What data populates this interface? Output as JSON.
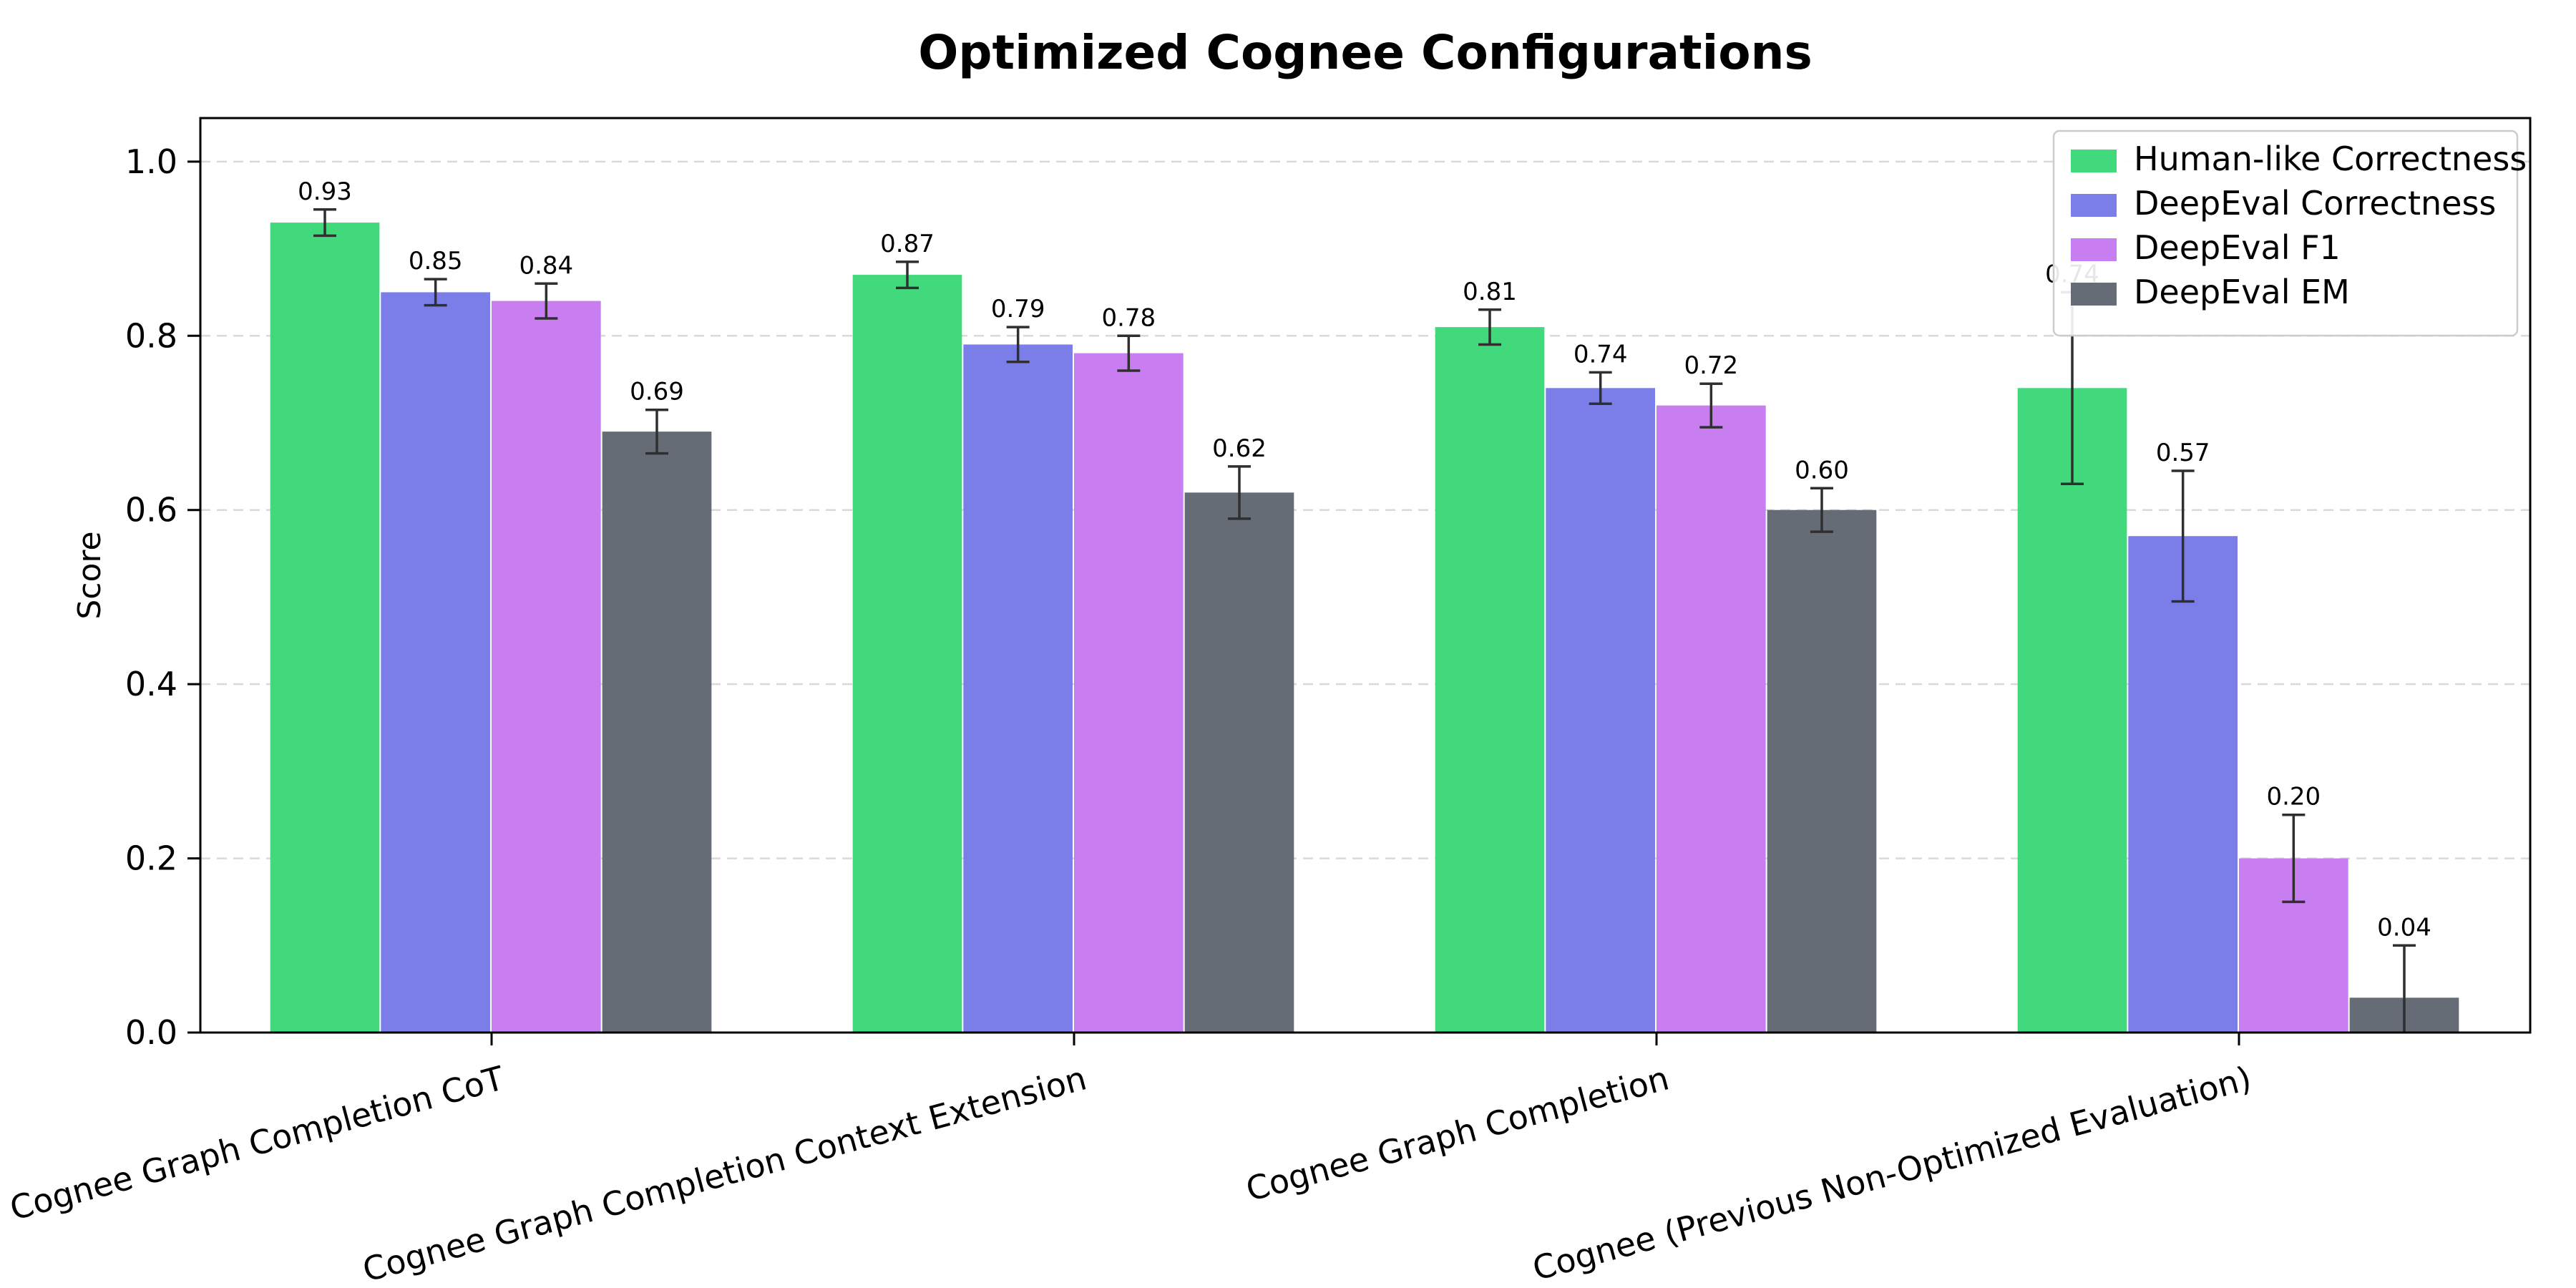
{
  "chart_data": {
    "type": "bar",
    "title": "Optimized Cognee Configurations",
    "xlabel": "",
    "ylabel": "Score",
    "ylim": [
      0.0,
      1.05
    ],
    "yticks": [
      0.0,
      0.2,
      0.4,
      0.6,
      0.8,
      1.0
    ],
    "grid": "horizontal-dashed",
    "gridline_color": "#d9d9d9",
    "errorbar_color": "#2f2f2f",
    "legend_position": "upper right",
    "categories": [
      "Cognee Graph Completion CoT",
      "Cognee Graph Completion Context Extension",
      "Cognee Graph Completion",
      "Cognee (Previous Non-Optimized Evaluation)"
    ],
    "series": [
      {
        "name": "Human-like Correctness",
        "color": "#41d97c",
        "values": [
          0.93,
          0.87,
          0.81,
          0.74
        ],
        "errors": [
          0.015,
          0.015,
          0.02,
          0.11
        ]
      },
      {
        "name": "DeepEval Correctness",
        "color": "#7b7ee8",
        "values": [
          0.85,
          0.79,
          0.74,
          0.57
        ],
        "errors": [
          0.015,
          0.02,
          0.018,
          0.075
        ]
      },
      {
        "name": "DeepEval F1",
        "color": "#c87df0",
        "values": [
          0.84,
          0.78,
          0.72,
          0.2
        ],
        "errors": [
          0.02,
          0.02,
          0.025,
          0.05
        ]
      },
      {
        "name": "DeepEval EM",
        "color": "#666c76",
        "values": [
          0.69,
          0.62,
          0.6,
          0.04
        ],
        "errors": [
          0.025,
          0.03,
          0.025,
          0.06
        ]
      }
    ]
  }
}
